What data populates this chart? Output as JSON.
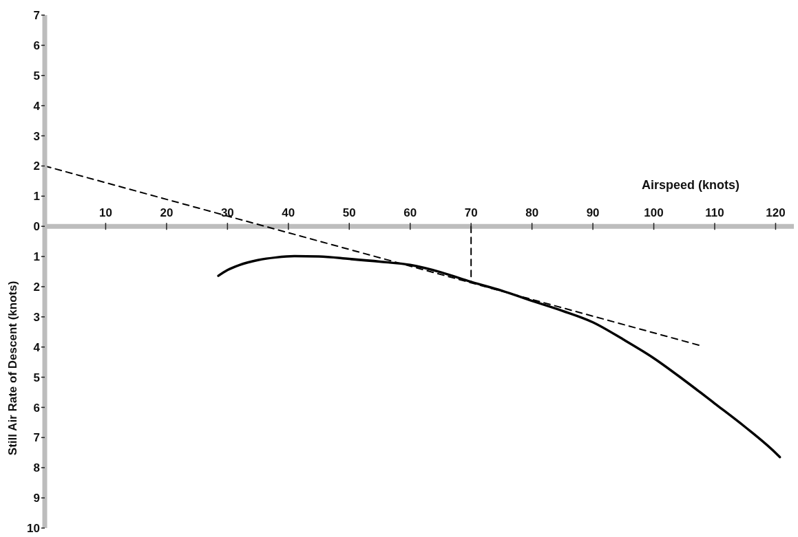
{
  "chart_data": {
    "type": "line",
    "xlabel": "Airspeed (knots)",
    "ylabel": "Still Air Rate of Descent (knots)",
    "xlim": [
      0,
      123
    ],
    "xticks": [
      10,
      20,
      30,
      40,
      50,
      60,
      70,
      80,
      90,
      100,
      110,
      120
    ],
    "ylim": [
      -10,
      7
    ],
    "yticks": [
      7,
      6,
      5,
      4,
      3,
      2,
      1,
      0,
      {
        "value": -1,
        "label": "1"
      },
      {
        "value": -2,
        "label": "2"
      },
      {
        "value": -3,
        "label": "3"
      },
      {
        "value": -4,
        "label": "4"
      },
      {
        "value": -5,
        "label": "5"
      },
      {
        "value": -6,
        "label": "6"
      },
      {
        "value": -7,
        "label": "7"
      },
      {
        "value": -8,
        "label": "8"
      },
      {
        "value": -9,
        "label": "9"
      },
      {
        "value": -10,
        "label": "10"
      }
    ],
    "grid": false,
    "marker": "none",
    "series": [
      {
        "color": "#000000",
        "line_style": "solid",
        "x": [
          28.5,
          30,
          32,
          35,
          38,
          41,
          45,
          50,
          55,
          60,
          65,
          70,
          75,
          80,
          85,
          90,
          95,
          100,
          105,
          110,
          115,
          120,
          120.7
        ],
        "values": [
          -1.64,
          -1.45,
          -1.28,
          -1.12,
          -1.03,
          -0.99,
          -1.0,
          -1.08,
          -1.17,
          -1.28,
          -1.52,
          -1.84,
          -2.13,
          -2.47,
          -2.8,
          -3.18,
          -3.75,
          -4.37,
          -5.1,
          -5.87,
          -6.65,
          -7.51,
          -7.65
        ]
      },
      {
        "color": "#000000",
        "line_style": "dashed",
        "x": [
          0,
          107.6
        ],
        "values": [
          2,
          -3.95
        ]
      },
      {
        "color": "#000000",
        "line_style": "dashed",
        "x": [
          70,
          70
        ],
        "values": [
          0,
          -1.84
        ]
      }
    ]
  }
}
